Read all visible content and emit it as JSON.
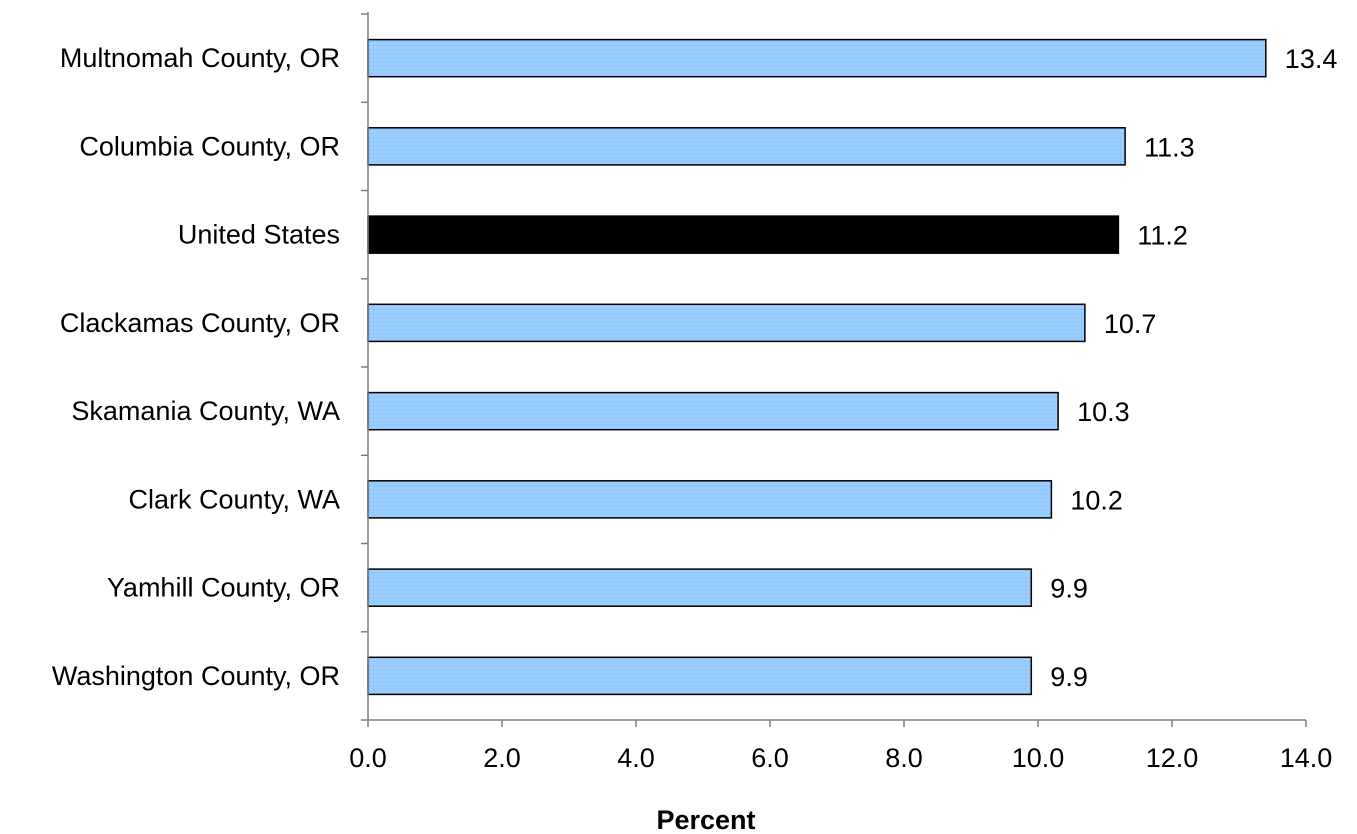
{
  "chart_data": {
    "type": "bar",
    "orientation": "horizontal",
    "categories": [
      "Multnomah County, OR",
      "Columbia County, OR",
      "United States",
      "Clackamas County, OR",
      "Skamania County, WA",
      "Clark County, WA",
      "Yamhill County, OR",
      "Washington County, OR"
    ],
    "values": [
      13.4,
      11.3,
      11.2,
      10.7,
      10.3,
      10.2,
      9.9,
      9.9
    ],
    "data_labels": [
      "13.4",
      "11.3",
      "11.2",
      "10.7",
      "10.3",
      "10.2",
      "9.9",
      "9.9"
    ],
    "highlight_category": "United States",
    "xlabel": "Percent",
    "ylabel": "",
    "xlim": [
      0,
      14
    ],
    "x_ticks": [
      0,
      2,
      4,
      6,
      8,
      10,
      12,
      14
    ],
    "x_tick_labels": [
      "0.0",
      "2.0",
      "4.0",
      "6.0",
      "8.0",
      "10.0",
      "12.0",
      "14.0"
    ],
    "grid": false,
    "legend": "none",
    "colors": {
      "bar_fill": "#99ccff",
      "bar_highlight_fill": "#000000",
      "bar_stroke": "#000000",
      "axis": "#808080"
    }
  }
}
